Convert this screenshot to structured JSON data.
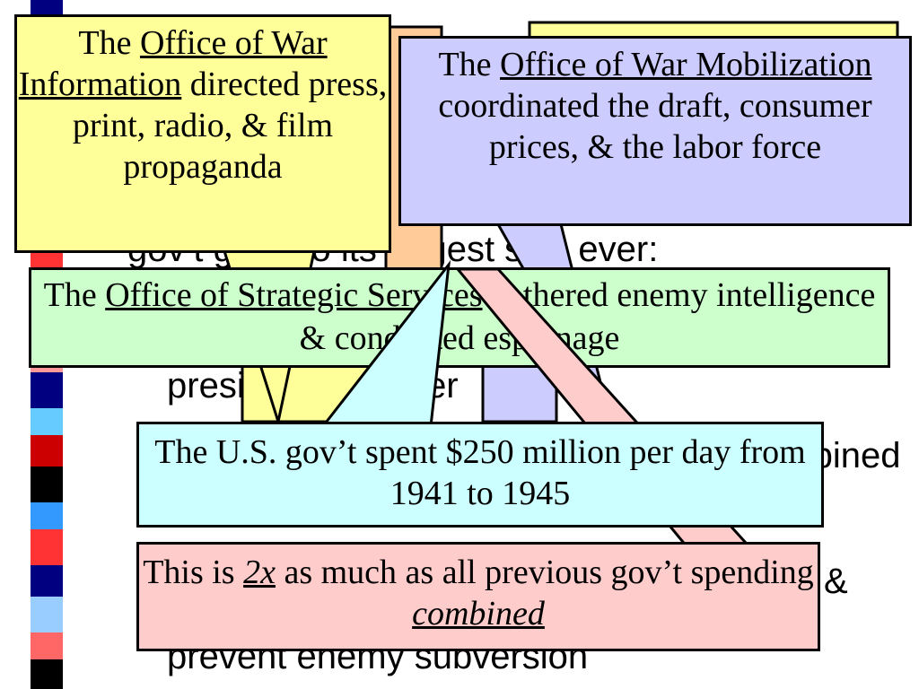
{
  "colors": {
    "yellow": "#ffff99",
    "lavender": "#ccccff",
    "green": "#ccffcc",
    "cyan": "#ccffff",
    "pink": "#ffcccc",
    "peach": "#ffcc99"
  },
  "background_text": {
    "line1": "gov’t grew to its largest size ever:",
    "line2": "presidential power",
    "line3": "combined",
    "line4": "&",
    "line5": "prevent enemy subversion"
  },
  "callouts": {
    "owi": {
      "prefix": "The ",
      "name": "Office of War Information",
      "rest": " directed press, print, radio, & film propaganda"
    },
    "owm": {
      "prefix": "The ",
      "name": "Office of War Mobilization",
      "rest": " coordinated the draft, consumer prices, & the labor force"
    },
    "oss": {
      "prefix": "The ",
      "name": "Office of Strategic Services",
      "rest": " gathered enemy intelligence & conducted espionage"
    },
    "spending": {
      "text": "The U.S. gov’t spent $250 million per day from 1941 to 1945"
    },
    "comparison": {
      "part1": "This is ",
      "emph1": "2x",
      "part2": " as much as all previous gov’t spending ",
      "emph2": "combined"
    }
  }
}
